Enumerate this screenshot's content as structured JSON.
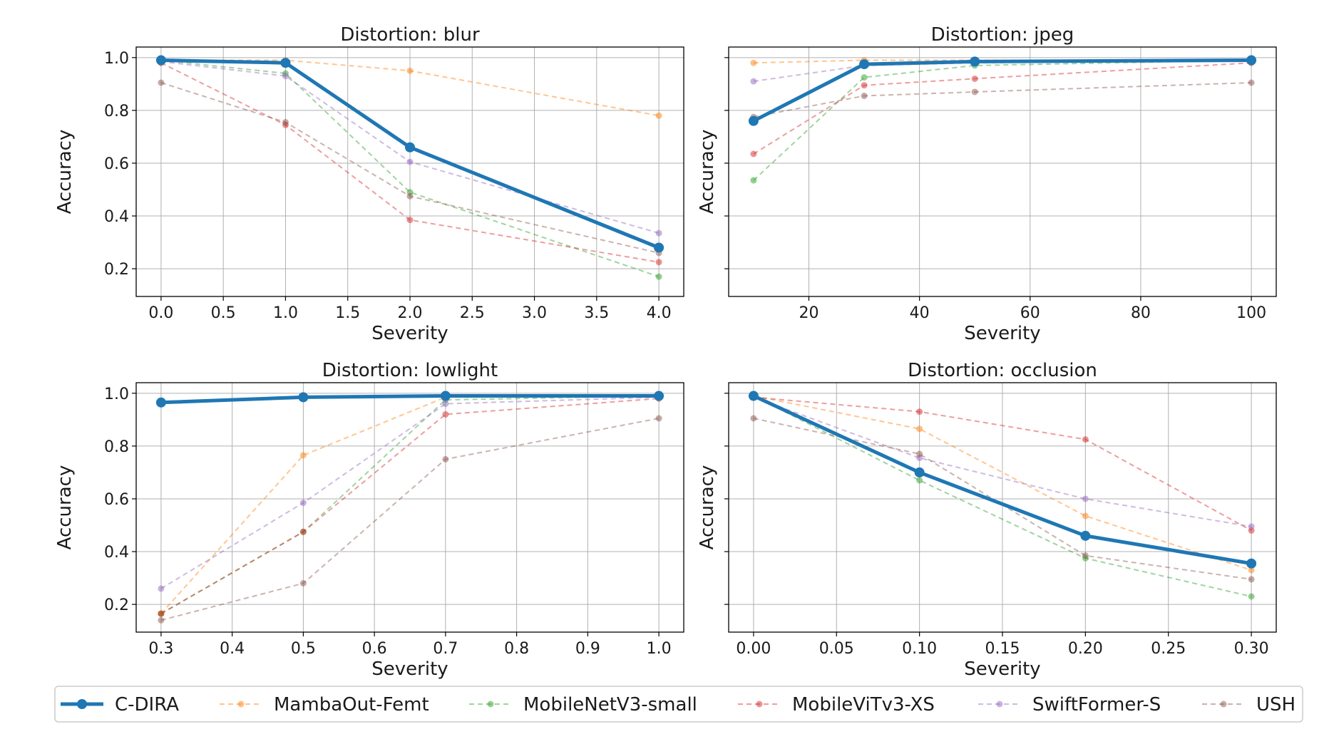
{
  "chart_data": [
    {
      "type": "line",
      "title": "Distortion: blur",
      "xlabel": "Severity",
      "ylabel": "Accuracy",
      "xlim": [
        -0.2,
        4.2
      ],
      "ylim": [
        0.095,
        1.04
      ],
      "xticks": [
        0.0,
        0.5,
        1.0,
        1.5,
        2.0,
        2.5,
        3.0,
        3.5,
        4.0
      ],
      "xticklabels": [
        "0.0",
        "0.5",
        "1.0",
        "1.5",
        "2.0",
        "2.5",
        "3.0",
        "3.5",
        "4.0"
      ],
      "yticks": [
        0.2,
        0.4,
        0.6,
        0.8,
        1.0
      ],
      "yticklabels": [
        "0.2",
        "0.4",
        "0.6",
        "0.8",
        "1.0"
      ],
      "show_yticklabels": true,
      "grid": true,
      "x": [
        0,
        1,
        2,
        4
      ],
      "series": [
        {
          "name": "C-DIRA",
          "values": [
            0.99,
            0.98,
            0.66,
            0.28
          ]
        },
        {
          "name": "MambaOut-Femt",
          "values": [
            0.99,
            0.99,
            0.95,
            0.78
          ]
        },
        {
          "name": "MobileNetV3-small",
          "values": [
            0.99,
            0.94,
            0.49,
            0.17
          ]
        },
        {
          "name": "MobileViTv3-XS",
          "values": [
            0.98,
            0.745,
            0.385,
            0.225
          ]
        },
        {
          "name": "SwiftFormer-S",
          "values": [
            0.985,
            0.93,
            0.605,
            0.335
          ]
        },
        {
          "name": "USH",
          "values": [
            0.905,
            0.755,
            0.475,
            0.26
          ]
        }
      ]
    },
    {
      "type": "line",
      "title": "Distortion: jpeg",
      "xlabel": "Severity",
      "ylabel": "Accuracy",
      "xlim": [
        5.5,
        104.5
      ],
      "ylim": [
        0.095,
        1.04
      ],
      "xticks": [
        20,
        40,
        60,
        80,
        100
      ],
      "xticklabels": [
        "20",
        "40",
        "60",
        "80",
        "100"
      ],
      "yticks": [
        0.2,
        0.4,
        0.6,
        0.8,
        1.0
      ],
      "yticklabels": [
        "0.2",
        "0.4",
        "0.6",
        "0.8",
        "1.0"
      ],
      "show_yticklabels": false,
      "grid": true,
      "x": [
        10,
        30,
        50,
        100
      ],
      "series": [
        {
          "name": "C-DIRA",
          "values": [
            0.76,
            0.975,
            0.985,
            0.99
          ]
        },
        {
          "name": "MambaOut-Femt",
          "values": [
            0.98,
            0.99,
            0.99,
            0.99
          ]
        },
        {
          "name": "MobileNetV3-small",
          "values": [
            0.535,
            0.925,
            0.97,
            0.99
          ]
        },
        {
          "name": "MobileViTv3-XS",
          "values": [
            0.635,
            0.895,
            0.92,
            0.98
          ]
        },
        {
          "name": "SwiftFormer-S",
          "values": [
            0.91,
            0.97,
            0.98,
            0.99
          ]
        },
        {
          "name": "USH",
          "values": [
            0.775,
            0.855,
            0.87,
            0.905
          ]
        }
      ]
    },
    {
      "type": "line",
      "title": "Distortion: lowlight",
      "xlabel": "Severity",
      "ylabel": "Accuracy",
      "xlim": [
        0.265,
        1.035
      ],
      "ylim": [
        0.095,
        1.04
      ],
      "xticks": [
        0.3,
        0.4,
        0.5,
        0.6,
        0.7,
        0.8,
        0.9,
        1.0
      ],
      "xticklabels": [
        "0.3",
        "0.4",
        "0.5",
        "0.6",
        "0.7",
        "0.8",
        "0.9",
        "1.0"
      ],
      "yticks": [
        0.2,
        0.4,
        0.6,
        0.8,
        1.0
      ],
      "yticklabels": [
        "0.2",
        "0.4",
        "0.6",
        "0.8",
        "1.0"
      ],
      "show_yticklabels": true,
      "grid": true,
      "x": [
        0.3,
        0.5,
        0.7,
        1.0
      ],
      "series": [
        {
          "name": "C-DIRA",
          "values": [
            0.965,
            0.985,
            0.99,
            0.99
          ]
        },
        {
          "name": "MambaOut-Femt",
          "values": [
            0.165,
            0.765,
            0.985,
            0.99
          ]
        },
        {
          "name": "MobileNetV3-small",
          "values": [
            0.165,
            0.475,
            0.975,
            0.99
          ]
        },
        {
          "name": "MobileViTv3-XS",
          "values": [
            0.165,
            0.475,
            0.92,
            0.98
          ]
        },
        {
          "name": "SwiftFormer-S",
          "values": [
            0.26,
            0.585,
            0.96,
            0.985
          ]
        },
        {
          "name": "USH",
          "values": [
            0.14,
            0.28,
            0.75,
            0.905
          ]
        }
      ]
    },
    {
      "type": "line",
      "title": "Distortion: occlusion",
      "xlabel": "Severity",
      "ylabel": "Accuracy",
      "xlim": [
        -0.015,
        0.315
      ],
      "ylim": [
        0.095,
        1.04
      ],
      "xticks": [
        0.0,
        0.05,
        0.1,
        0.15,
        0.2,
        0.25,
        0.3
      ],
      "xticklabels": [
        "0.00",
        "0.05",
        "0.10",
        "0.15",
        "0.20",
        "0.25",
        "0.30"
      ],
      "yticks": [
        0.2,
        0.4,
        0.6,
        0.8,
        1.0
      ],
      "yticklabels": [
        "0.2",
        "0.4",
        "0.6",
        "0.8",
        "1.0"
      ],
      "show_yticklabels": false,
      "grid": true,
      "x": [
        0.0,
        0.1,
        0.2,
        0.3
      ],
      "series": [
        {
          "name": "C-DIRA",
          "values": [
            0.99,
            0.7,
            0.46,
            0.355
          ]
        },
        {
          "name": "MambaOut-Femt",
          "values": [
            0.99,
            0.865,
            0.535,
            0.33
          ]
        },
        {
          "name": "MobileNetV3-small",
          "values": [
            0.99,
            0.67,
            0.375,
            0.23
          ]
        },
        {
          "name": "MobileViTv3-XS",
          "values": [
            0.985,
            0.93,
            0.825,
            0.48
          ]
        },
        {
          "name": "SwiftFormer-S",
          "values": [
            0.985,
            0.755,
            0.6,
            0.495
          ]
        },
        {
          "name": "USH",
          "values": [
            0.905,
            0.77,
            0.385,
            0.295
          ]
        }
      ]
    }
  ],
  "legend": {
    "placement": "bottom",
    "entries": [
      {
        "name": "C-DIRA",
        "color": "#1f77b4",
        "style": "solid-bold"
      },
      {
        "name": "MambaOut-Femt",
        "color": "#ff7f0e",
        "style": "dashed"
      },
      {
        "name": "MobileNetV3-small",
        "color": "#2ca02c",
        "style": "dashed"
      },
      {
        "name": "MobileViTv3-XS",
        "color": "#d62728",
        "style": "dashed"
      },
      {
        "name": "SwiftFormer-S",
        "color": "#9467bd",
        "style": "dashed"
      },
      {
        "name": "USH",
        "color": "#8c564b",
        "style": "dashed"
      }
    ]
  }
}
